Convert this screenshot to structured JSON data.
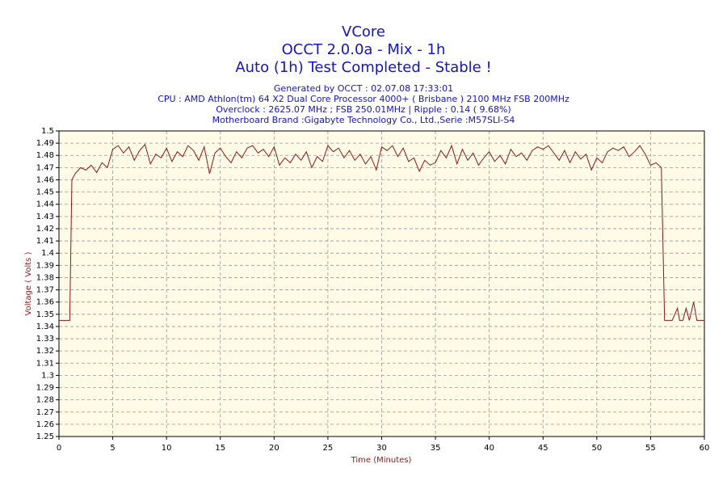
{
  "chart_data": {
    "type": "line",
    "title": "VCore",
    "subtitle": [
      "OCCT 2.0.0a - Mix - 1h",
      "Auto (1h) Test Completed - Stable !"
    ],
    "info_lines": [
      "Generated by OCCT : 02.07.08 17:33:01",
      "CPU : AMD Athlon(tm) 64 X2 Dual Core Processor 4000+ ( Brisbane ) 2100 MHz FSB 200MHz",
      "Overclock : 2625.07 MHz ; FSB 250.01MHz | Ripple : 0.14 ( 9.68%)",
      "Motherboard Brand :Gigabyte Technology Co., Ltd.,Serie :M57SLI-S4"
    ],
    "x_label": "Time (Minutes)",
    "y_label": "Voltage ( Volts )",
    "xlim": [
      0,
      60
    ],
    "xticks": [
      0,
      5,
      10,
      15,
      20,
      25,
      30,
      35,
      40,
      45,
      50,
      55,
      60
    ],
    "ylim": [
      1.25,
      1.5
    ],
    "yticks": [
      1.25,
      1.26,
      1.27,
      1.28,
      1.29,
      1.3,
      1.31,
      1.32,
      1.33,
      1.34,
      1.35,
      1.36,
      1.37,
      1.38,
      1.39,
      1.4,
      1.41,
      1.42,
      1.43,
      1.44,
      1.45,
      1.46,
      1.47,
      1.48,
      1.49,
      1.5
    ],
    "grid": true,
    "x": [
      0,
      0.5,
      1,
      1.2,
      1.5,
      2,
      2.5,
      3,
      3.5,
      4,
      4.5,
      5,
      5.5,
      6,
      6.5,
      7,
      7.5,
      8,
      8.5,
      9,
      9.5,
      10,
      10.5,
      11,
      11.5,
      12,
      12.5,
      13,
      13.5,
      14,
      14.5,
      15,
      15.5,
      16,
      16.5,
      17,
      17.5,
      18,
      18.5,
      19,
      19.5,
      20,
      20.5,
      21,
      21.5,
      22,
      22.5,
      23,
      23.5,
      24,
      24.5,
      25,
      25.5,
      26,
      26.5,
      27,
      27.5,
      28,
      28.5,
      29,
      29.5,
      30,
      30.5,
      31,
      31.5,
      32,
      32.5,
      33,
      33.5,
      34,
      34.5,
      35,
      35.5,
      36,
      36.5,
      37,
      37.5,
      38,
      38.5,
      39,
      39.5,
      40,
      40.5,
      41,
      41.5,
      42,
      42.5,
      43,
      43.5,
      44,
      44.5,
      45,
      45.5,
      46,
      46.5,
      47,
      47.5,
      48,
      48.5,
      49,
      49.5,
      50,
      50.5,
      51,
      51.5,
      52,
      52.5,
      53,
      53.5,
      54,
      54.5,
      55,
      55.5,
      56,
      56.3,
      57,
      57.5,
      57.7,
      58,
      58.3,
      58.6,
      59,
      59.3,
      60
    ],
    "series": [
      {
        "name": "VCore",
        "color": "#8b1a1a",
        "values": [
          1.345,
          1.345,
          1.345,
          1.46,
          1.465,
          1.47,
          1.468,
          1.472,
          1.466,
          1.474,
          1.47,
          1.485,
          1.488,
          1.482,
          1.487,
          1.476,
          1.484,
          1.489,
          1.473,
          1.481,
          1.478,
          1.486,
          1.475,
          1.483,
          1.479,
          1.488,
          1.484,
          1.476,
          1.487,
          1.465,
          1.482,
          1.486,
          1.479,
          1.474,
          1.483,
          1.478,
          1.486,
          1.488,
          1.482,
          1.485,
          1.479,
          1.487,
          1.472,
          1.478,
          1.474,
          1.481,
          1.476,
          1.483,
          1.47,
          1.479,
          1.475,
          1.488,
          1.483,
          1.486,
          1.478,
          1.484,
          1.476,
          1.481,
          1.473,
          1.479,
          1.468,
          1.487,
          1.484,
          1.488,
          1.479,
          1.486,
          1.475,
          1.478,
          1.467,
          1.476,
          1.472,
          1.474,
          1.484,
          1.478,
          1.488,
          1.473,
          1.485,
          1.476,
          1.482,
          1.472,
          1.478,
          1.483,
          1.475,
          1.48,
          1.473,
          1.485,
          1.479,
          1.482,
          1.476,
          1.484,
          1.487,
          1.485,
          1.488,
          1.482,
          1.476,
          1.484,
          1.474,
          1.483,
          1.477,
          1.481,
          1.468,
          1.478,
          1.474,
          1.483,
          1.486,
          1.484,
          1.487,
          1.479,
          1.483,
          1.488,
          1.481,
          1.472,
          1.474,
          1.47,
          1.345,
          1.345,
          1.355,
          1.345,
          1.345,
          1.355,
          1.345,
          1.36,
          1.345,
          1.345
        ]
      }
    ]
  }
}
